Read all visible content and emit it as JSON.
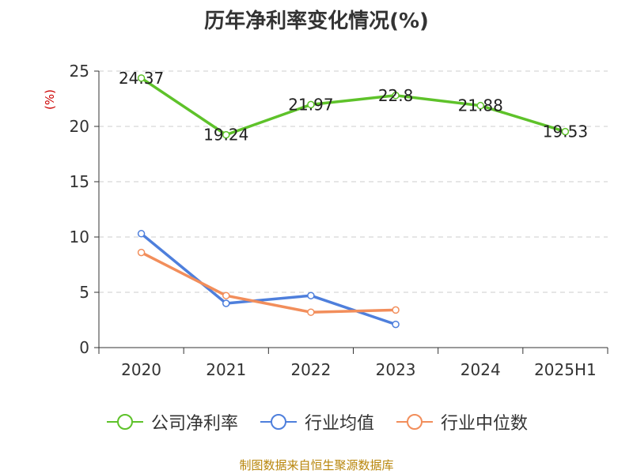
{
  "chart_data": {
    "type": "line",
    "title": "历年净利率变化情况(%)",
    "ylabel": "(%)",
    "categories": [
      "2020",
      "2021",
      "2022",
      "2023",
      "2024",
      "2025H1"
    ],
    "ylim": [
      0,
      25
    ],
    "yticks": [
      0,
      5,
      10,
      15,
      20,
      25
    ],
    "grid": true,
    "legend_position": "bottom",
    "series": [
      {
        "name": "公司净利率",
        "color": "#5ec22a",
        "values": [
          24.37,
          19.24,
          21.97,
          22.8,
          21.88,
          19.53
        ],
        "labels": [
          "24.37",
          "19.24",
          "21.97",
          "22.8",
          "21.88",
          "19.53"
        ]
      },
      {
        "name": "行业均值",
        "color": "#4e7fdc",
        "values": [
          10.3,
          4.0,
          4.7,
          2.1,
          null,
          null
        ]
      },
      {
        "name": "行业中位数",
        "color": "#f28e5b",
        "values": [
          8.6,
          4.7,
          3.2,
          3.4,
          null,
          null
        ]
      }
    ]
  },
  "source_note": "制图数据来自恒生聚源数据库"
}
